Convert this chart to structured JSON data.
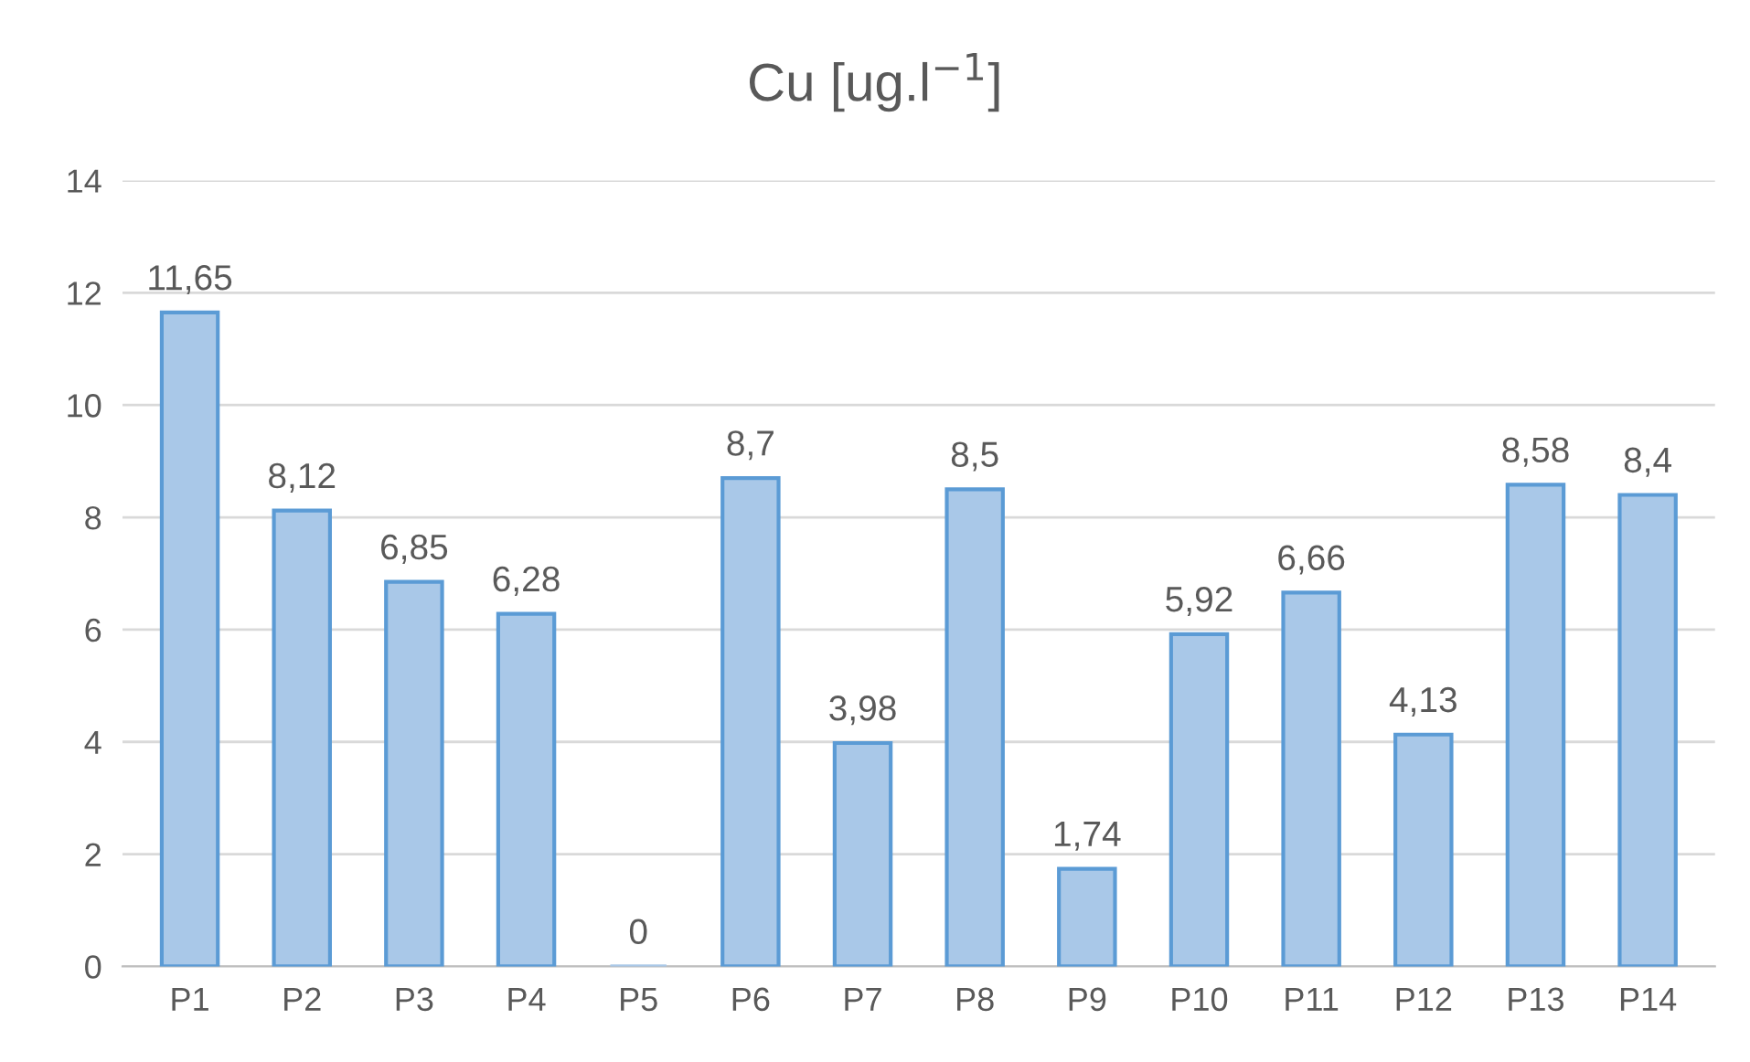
{
  "chart_data": {
    "type": "bar",
    "title": "Cu [ug.l$^{−1}$]",
    "categories": [
      "P1",
      "P2",
      "P3",
      "P4",
      "P5",
      "P6",
      "P7",
      "P8",
      "P9",
      "P10",
      "P11",
      "P12",
      "P13",
      "P14"
    ],
    "values": [
      11.65,
      8.12,
      6.85,
      6.28,
      0,
      8.7,
      3.98,
      8.5,
      1.74,
      5.92,
      6.66,
      4.13,
      8.58,
      8.4
    ],
    "value_labels": [
      "11,65",
      "8,12",
      "6,85",
      "6,28",
      "0",
      "8,7",
      "3,98",
      "8,5",
      "1,74",
      "5,92",
      "6,66",
      "4,13",
      "8,58",
      "8,4"
    ],
    "color": "#a9c8e8",
    "ylim": [
      0,
      14
    ],
    "yticks": [
      0,
      2,
      4,
      6,
      8,
      10,
      12,
      14
    ],
    "grid": "y"
  }
}
